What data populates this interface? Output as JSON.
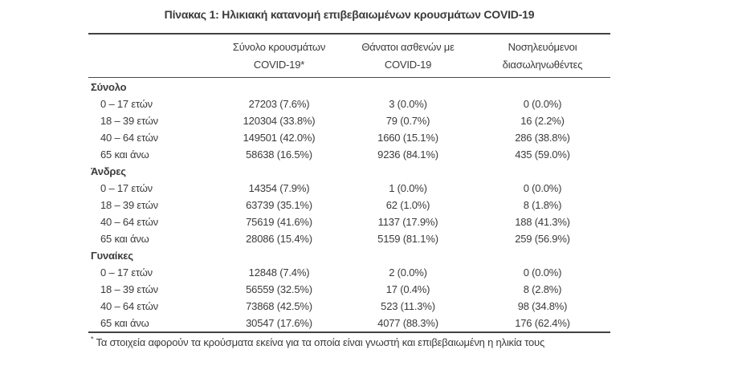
{
  "title": "Πίνακας 1: Ηλικιακή κατανομή επιβεβαιωμένων κρουσμάτων COVID-19",
  "table": {
    "columns": [
      {
        "line1": "Σύνολο κρουσμάτων",
        "line2": "COVID-19*"
      },
      {
        "line1": "Θάνατοι ασθενών με",
        "line2": "COVID-19"
      },
      {
        "line1": "Νοσηλευόμενοι",
        "line2": "διασωληνωθέντες"
      }
    ],
    "sections": [
      {
        "label": "Σύνολο",
        "rows": [
          {
            "label": "0 – 17 ετών",
            "cases": "27203 (7.6%)",
            "deaths": "3 (0.0%)",
            "intubated": "0 (0.0%)"
          },
          {
            "label": "18 – 39 ετών",
            "cases": "120304 (33.8%)",
            "deaths": "79 (0.7%)",
            "intubated": "16 (2.2%)"
          },
          {
            "label": "40 – 64 ετών",
            "cases": "149501 (42.0%)",
            "deaths": "1660 (15.1%)",
            "intubated": "286 (38.8%)"
          },
          {
            "label": "65 και άνω",
            "cases": "58638 (16.5%)",
            "deaths": "9236 (84.1%)",
            "intubated": "435 (59.0%)"
          }
        ]
      },
      {
        "label": "Άνδρες",
        "rows": [
          {
            "label": "0 – 17 ετών",
            "cases": "14354 (7.9%)",
            "deaths": "1 (0.0%)",
            "intubated": "0 (0.0%)"
          },
          {
            "label": "18 – 39 ετών",
            "cases": "63739 (35.1%)",
            "deaths": "62 (1.0%)",
            "intubated": "8 (1.8%)"
          },
          {
            "label": "40 – 64 ετών",
            "cases": "75619 (41.6%)",
            "deaths": "1137 (17.9%)",
            "intubated": "188 (41.3%)"
          },
          {
            "label": "65 και άνω",
            "cases": "28086 (15.4%)",
            "deaths": "5159 (81.1%)",
            "intubated": "259 (56.9%)"
          }
        ]
      },
      {
        "label": "Γυναίκες",
        "rows": [
          {
            "label": "0 – 17 ετών",
            "cases": "12848 (7.4%)",
            "deaths": "2 (0.0%)",
            "intubated": "0 (0.0%)"
          },
          {
            "label": "18 – 39 ετών",
            "cases": "56559 (32.5%)",
            "deaths": "17 (0.4%)",
            "intubated": "8 (2.8%)"
          },
          {
            "label": "40 – 64 ετών",
            "cases": "73868 (42.5%)",
            "deaths": "523 (11.3%)",
            "intubated": "98 (34.8%)"
          },
          {
            "label": "65 και άνω",
            "cases": "30547 (17.6%)",
            "deaths": "4077 (88.3%)",
            "intubated": "176 (62.4%)"
          }
        ]
      }
    ]
  },
  "footnote": {
    "marker": "*",
    "text": "Τα στοιχεία αφορούν τα κρούσματα εκείνα για τα οποία είναι γνωστή και επιβεβαιωμένη η ηλικία τους"
  }
}
